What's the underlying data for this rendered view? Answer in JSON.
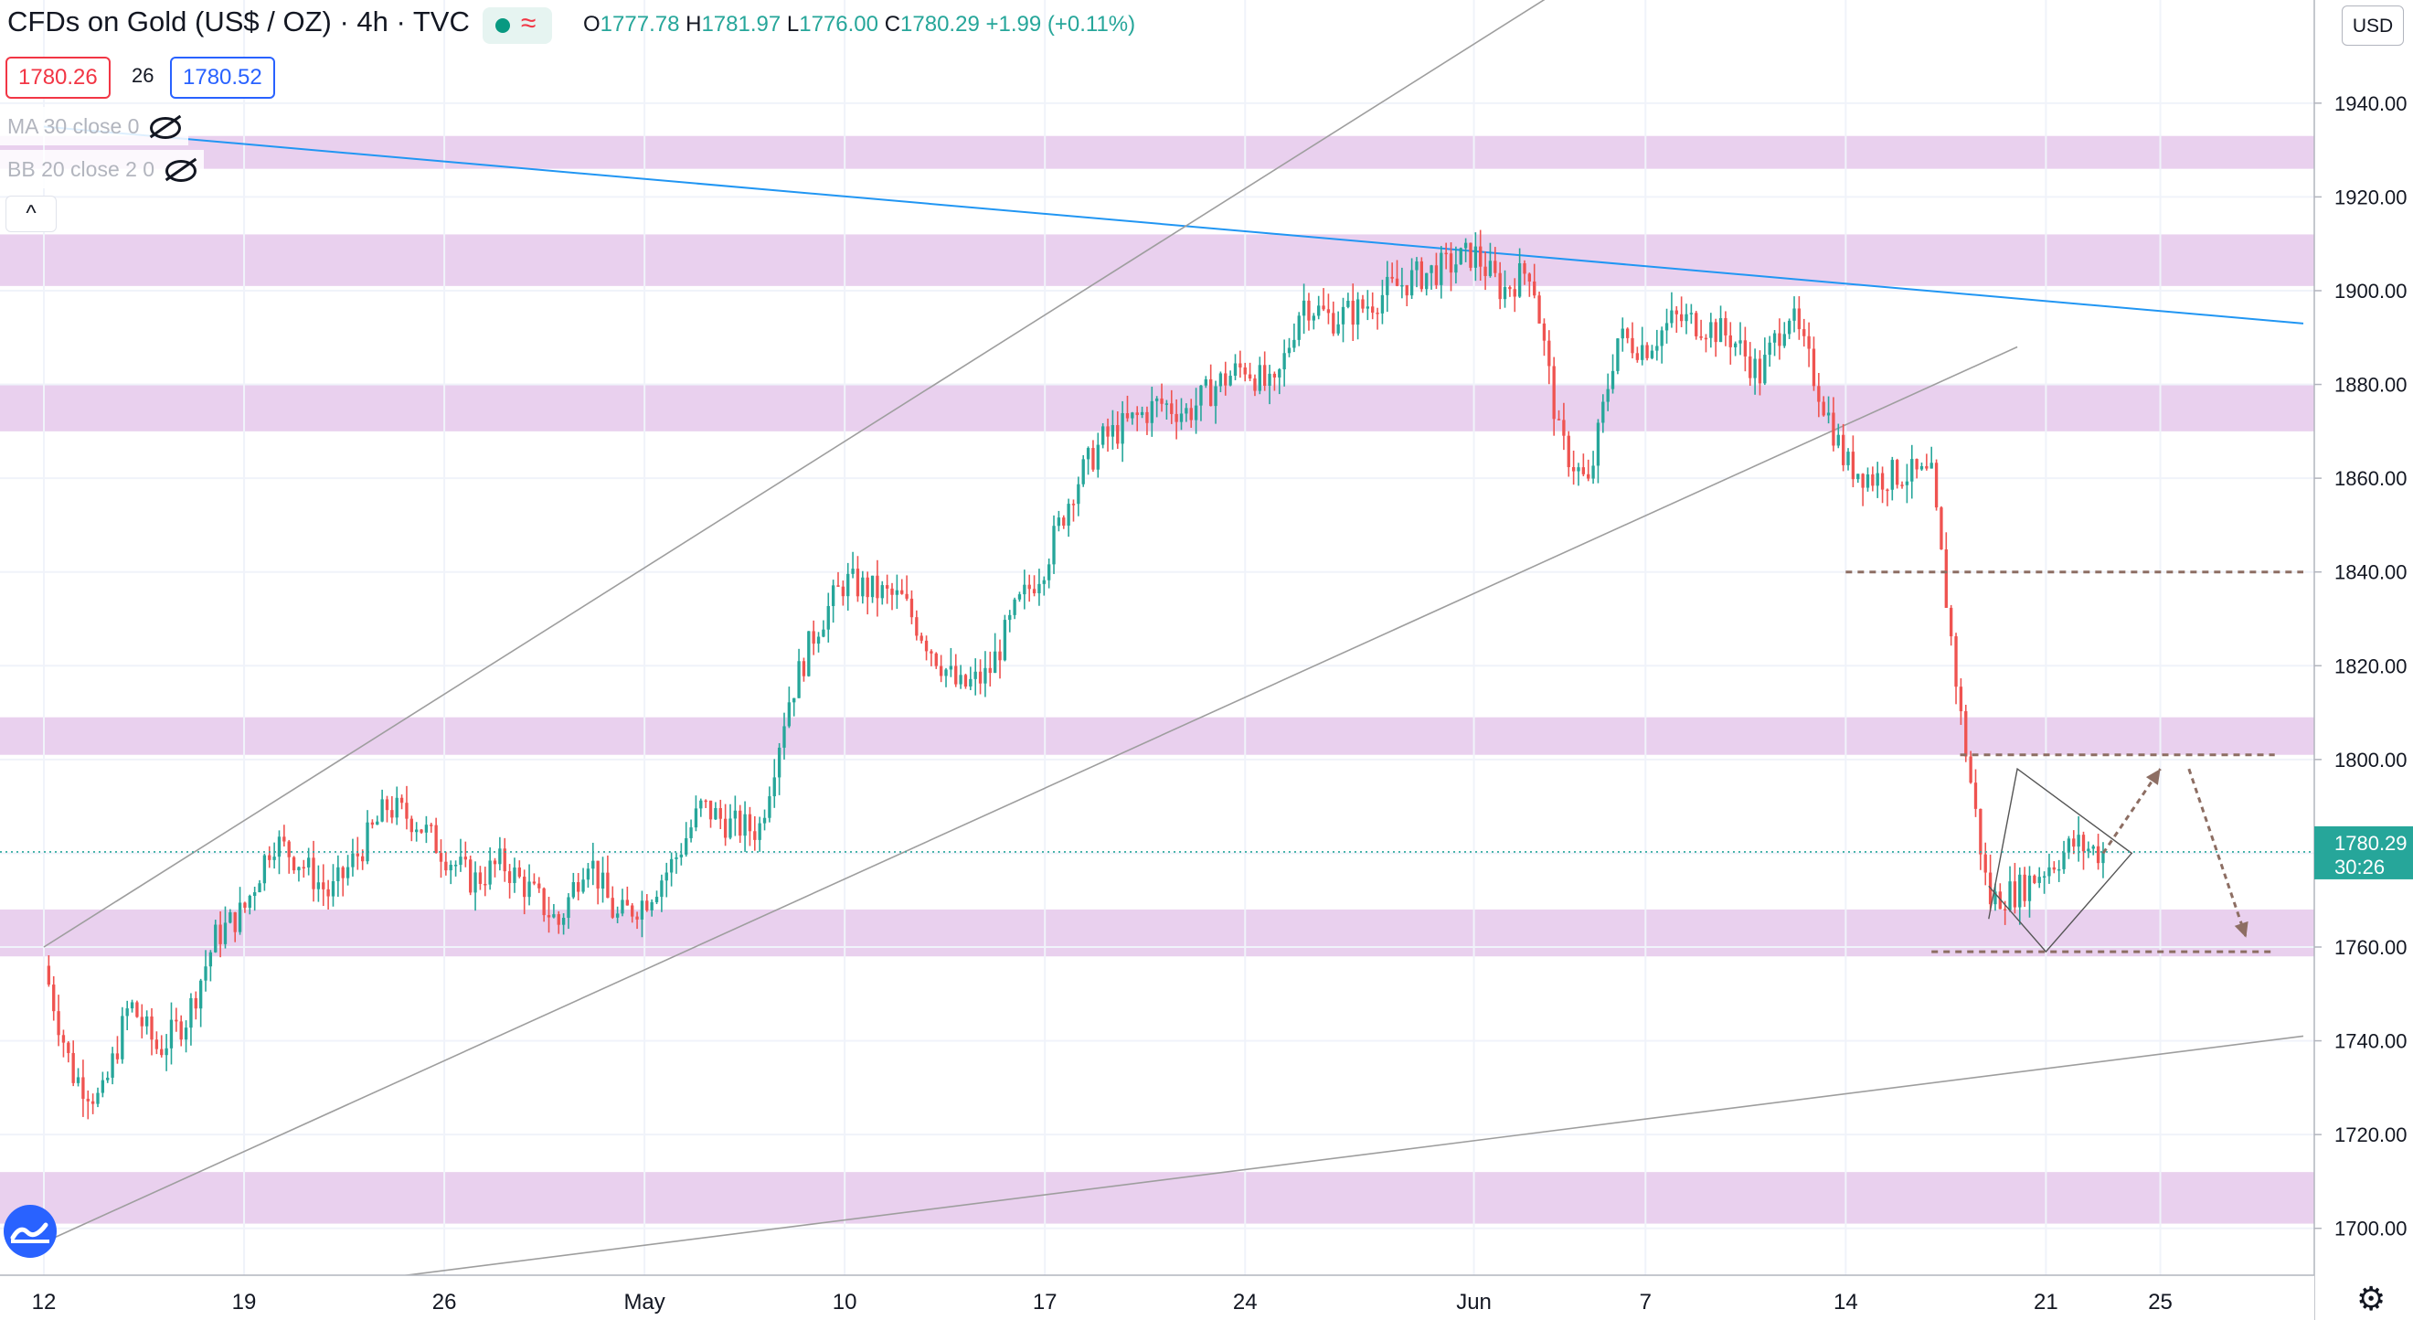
{
  "header": {
    "symbol": "CFDs on Gold (US$ / OZ)",
    "interval": "4h",
    "source": "TVC",
    "title_line": "CFDs on Gold (US$ / OZ) · 4h · TVC",
    "ohlc": {
      "o_label": "O",
      "o": "1777.78",
      "h_label": "H",
      "h": "1781.97",
      "l_label": "L",
      "l": "1776.00",
      "c_label": "C",
      "c": "1780.29",
      "change": "+1.99 (+0.11%)"
    },
    "bid": "1780.26",
    "spread": "26",
    "ask": "1780.52"
  },
  "indicators": [
    {
      "label": "MA 30 close 0",
      "icon": "eye-hidden-icon"
    },
    {
      "label": "BB 20 close 2 0",
      "icon": "eye-hidden-icon"
    }
  ],
  "collapse_glyph": "^",
  "currency": "USD",
  "price_tag": {
    "price": "1780.29",
    "countdown": "30:26"
  },
  "colors": {
    "up": "#26a69a",
    "down": "#ef5350",
    "zone": "#e1bee7",
    "trendline": "#2196f3",
    "channel": "#9e9e9e",
    "level": "#8d6e63",
    "tag": "#26a69a"
  },
  "chart_data": {
    "type": "candlestick",
    "timeframe": "4h",
    "y_axis": {
      "ticks": [
        1700,
        1720,
        1740,
        1760,
        1780,
        1800,
        1820,
        1840,
        1860,
        1880,
        1900,
        1920,
        1940
      ],
      "ylim": [
        1690,
        1962
      ]
    },
    "x_axis": {
      "start": "2021-04-12",
      "end": "2021-06-30",
      "tick_labels": [
        {
          "date": "2021-04-12",
          "label": "12"
        },
        {
          "date": "2021-04-19",
          "label": "19"
        },
        {
          "date": "2021-04-26",
          "label": "26"
        },
        {
          "date": "2021-05-03",
          "label": "May"
        },
        {
          "date": "2021-05-10",
          "label": "10"
        },
        {
          "date": "2021-05-17",
          "label": "17"
        },
        {
          "date": "2021-05-24",
          "label": "24"
        },
        {
          "date": "2021-06-01",
          "label": "Jun"
        },
        {
          "date": "2021-06-07",
          "label": "7"
        },
        {
          "date": "2021-06-14",
          "label": "14"
        },
        {
          "date": "2021-06-21",
          "label": "21"
        },
        {
          "date": "2021-06-25",
          "label": "25"
        }
      ]
    },
    "path": [
      [
        "2021-04-12",
        1756
      ],
      [
        "2021-04-13",
        1733
      ],
      [
        "2021-04-14",
        1727
      ],
      [
        "2021-04-15",
        1748
      ],
      [
        "2021-04-16",
        1738
      ],
      [
        "2021-04-17",
        1745
      ],
      [
        "2021-04-18",
        1762
      ],
      [
        "2021-04-19",
        1768
      ],
      [
        "2021-04-20",
        1783
      ],
      [
        "2021-04-21",
        1778
      ],
      [
        "2021-04-22",
        1771
      ],
      [
        "2021-04-23",
        1780
      ],
      [
        "2021-04-24",
        1790
      ],
      [
        "2021-04-25",
        1787
      ],
      [
        "2021-04-26",
        1780
      ],
      [
        "2021-04-27",
        1774
      ],
      [
        "2021-04-28",
        1778
      ],
      [
        "2021-04-29",
        1772
      ],
      [
        "2021-04-30",
        1765
      ],
      [
        "2021-05-01",
        1780
      ],
      [
        "2021-05-02",
        1766
      ],
      [
        "2021-05-03",
        1770
      ],
      [
        "2021-05-04",
        1778
      ],
      [
        "2021-05-05",
        1790
      ],
      [
        "2021-05-06",
        1786
      ],
      [
        "2021-05-07",
        1785
      ],
      [
        "2021-05-08",
        1812
      ],
      [
        "2021-05-09",
        1828
      ],
      [
        "2021-05-10",
        1838
      ],
      [
        "2021-05-11",
        1836
      ],
      [
        "2021-05-12",
        1834
      ],
      [
        "2021-05-13",
        1824
      ],
      [
        "2021-05-14",
        1815
      ],
      [
        "2021-05-15",
        1818
      ],
      [
        "2021-05-16",
        1832
      ],
      [
        "2021-05-17",
        1842
      ],
      [
        "2021-05-18",
        1858
      ],
      [
        "2021-05-19",
        1868
      ],
      [
        "2021-05-20",
        1872
      ],
      [
        "2021-05-21",
        1876
      ],
      [
        "2021-05-22",
        1874
      ],
      [
        "2021-05-23",
        1880
      ],
      [
        "2021-05-24",
        1884
      ],
      [
        "2021-05-25",
        1878
      ],
      [
        "2021-05-26",
        1898
      ],
      [
        "2021-05-27",
        1894
      ],
      [
        "2021-05-28",
        1896
      ],
      [
        "2021-05-29",
        1900
      ],
      [
        "2021-05-30",
        1903
      ],
      [
        "2021-05-31",
        1905
      ],
      [
        "2021-06-01",
        1908
      ],
      [
        "2021-06-02",
        1900
      ],
      [
        "2021-06-03",
        1905
      ],
      [
        "2021-06-04",
        1868
      ],
      [
        "2021-06-05",
        1858
      ],
      [
        "2021-06-06",
        1890
      ],
      [
        "2021-06-07",
        1888
      ],
      [
        "2021-06-08",
        1894
      ],
      [
        "2021-06-09",
        1893
      ],
      [
        "2021-06-10",
        1890
      ],
      [
        "2021-06-11",
        1882
      ],
      [
        "2021-06-12",
        1896
      ],
      [
        "2021-06-13",
        1880
      ],
      [
        "2021-06-14",
        1863
      ],
      [
        "2021-06-15",
        1860
      ],
      [
        "2021-06-16",
        1861
      ],
      [
        "2021-06-17",
        1860
      ],
      [
        "2021-06-18",
        1810
      ],
      [
        "2021-06-19",
        1770
      ],
      [
        "2021-06-20",
        1772
      ],
      [
        "2021-06-21",
        1777
      ],
      [
        "2021-06-22",
        1782
      ],
      [
        "2021-06-23",
        1780
      ]
    ],
    "zones": [
      [
        1926,
        1933
      ],
      [
        1901,
        1912
      ],
      [
        1870,
        1880
      ],
      [
        1801,
        1809
      ],
      [
        1758,
        1768
      ],
      [
        1701,
        1712
      ]
    ],
    "lines": [
      {
        "kind": "resistance",
        "from": [
          "2021-04-12",
          1935
        ],
        "to": [
          "2021-06-30",
          1893
        ]
      },
      {
        "kind": "channel-upper",
        "from": [
          "2021-04-12",
          1760
        ],
        "to": [
          "2021-06-05",
          1968
        ]
      },
      {
        "kind": "channel-lower",
        "from": [
          "2021-04-12",
          1697
        ],
        "to": [
          "2021-06-20",
          1888
        ]
      },
      {
        "kind": "long-support",
        "from": [
          "2021-04-13",
          1681
        ],
        "to": [
          "2021-06-30",
          1741
        ]
      }
    ],
    "levels": [
      {
        "value": 1840,
        "from": "2021-06-14",
        "to": "2021-06-30"
      },
      {
        "value": 1801,
        "from": "2021-06-18",
        "to": "2021-06-29"
      },
      {
        "value": 1759,
        "from": "2021-06-17",
        "to": "2021-06-29"
      }
    ],
    "pattern_triangle": [
      [
        "2021-06-19",
        1766
      ],
      [
        "2021-06-20",
        1798
      ],
      [
        "2021-06-24",
        1780
      ],
      [
        "2021-06-21",
        1759
      ],
      [
        "2021-06-19",
        1773
      ]
    ],
    "projection": [
      [
        "2021-06-23",
        1780
      ],
      [
        "2021-06-25",
        1798
      ],
      [
        "2021-06-26",
        1798
      ],
      [
        "2021-06-28",
        1762
      ]
    ],
    "last_price": 1780.29
  }
}
